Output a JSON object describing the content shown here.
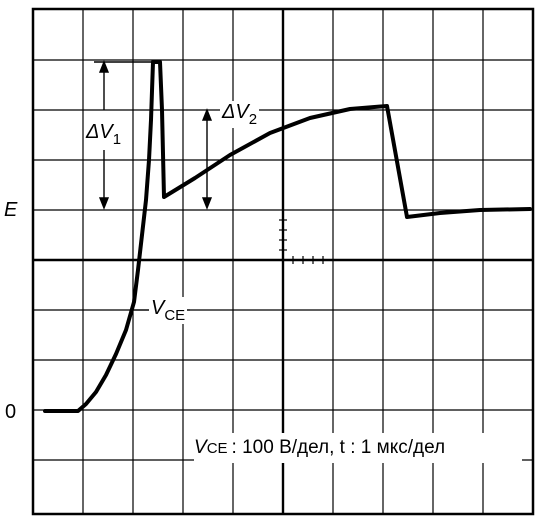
{
  "labels": {
    "e_axis": "E",
    "zero_axis": "0",
    "delta_v1": {
      "symbol": "ΔV",
      "subscript": "1"
    },
    "delta_v2": {
      "symbol": "ΔV",
      "subscript": "2"
    },
    "vce": {
      "symbol": "V",
      "subscript": "CE"
    }
  },
  "scale_note": {
    "symbol": "V",
    "subscript": "CE",
    "text": ": 100 В/дел, t : 1 мкс/дел"
  },
  "colors": {
    "trace": "#000000",
    "grid": "#000000",
    "background": "#ffffff"
  }
}
